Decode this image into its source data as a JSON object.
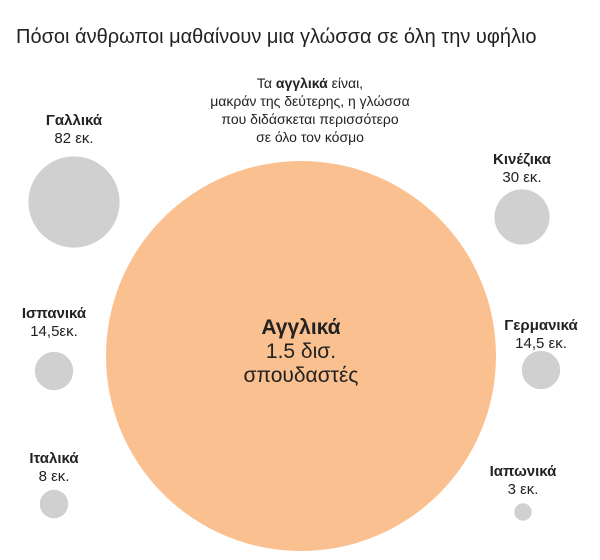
{
  "title": "Πόσοι άνθρωποι μαθαίνουν μια γλώσσα σε όλη την υφήλιο",
  "annotation": {
    "line1_pre": "Τα ",
    "line1_bold": "αγγλικά",
    "line1_post": " είναι,",
    "line2": "μακράν της δεύτερης, η γλώσσα",
    "line3": "που διδάσκεται περισσότερο",
    "line4": "σε όλο τον κόσμο"
  },
  "colors": {
    "highlight": "#FAC08F",
    "others": "#D0D0D0",
    "text": "#222222"
  },
  "chart_data": {
    "type": "bubble",
    "title": "Πόσοι άνθρωποι μαθαίνουν μια γλώσσα σε όλη την υφήλιο",
    "unit": "εκατομμύρια σπουδαστές",
    "items": [
      {
        "key": "english",
        "name": "Αγγλικά",
        "value": 1500,
        "label_lines": [
          "1.5 δισ.",
          "σπουδαστές"
        ],
        "highlight": true
      },
      {
        "key": "french",
        "name": "Γαλλικά",
        "value": 82,
        "label_lines": [
          "82 εκ."
        ]
      },
      {
        "key": "chinese",
        "name": "Κινέζικα",
        "value": 30,
        "label_lines": [
          "30 εκ."
        ]
      },
      {
        "key": "spanish",
        "name": "Ισπανικά",
        "value": 14.5,
        "label_lines": [
          "14,5εκ."
        ]
      },
      {
        "key": "german",
        "name": "Γερμανικά",
        "value": 14.5,
        "label_lines": [
          "14,5 εκ."
        ]
      },
      {
        "key": "italian",
        "name": "Ιταλικά",
        "value": 8,
        "label_lines": [
          "8 εκ."
        ]
      },
      {
        "key": "japanese",
        "name": "Ιαπωνικά",
        "value": 3,
        "label_lines": [
          "3 εκ."
        ]
      }
    ]
  }
}
